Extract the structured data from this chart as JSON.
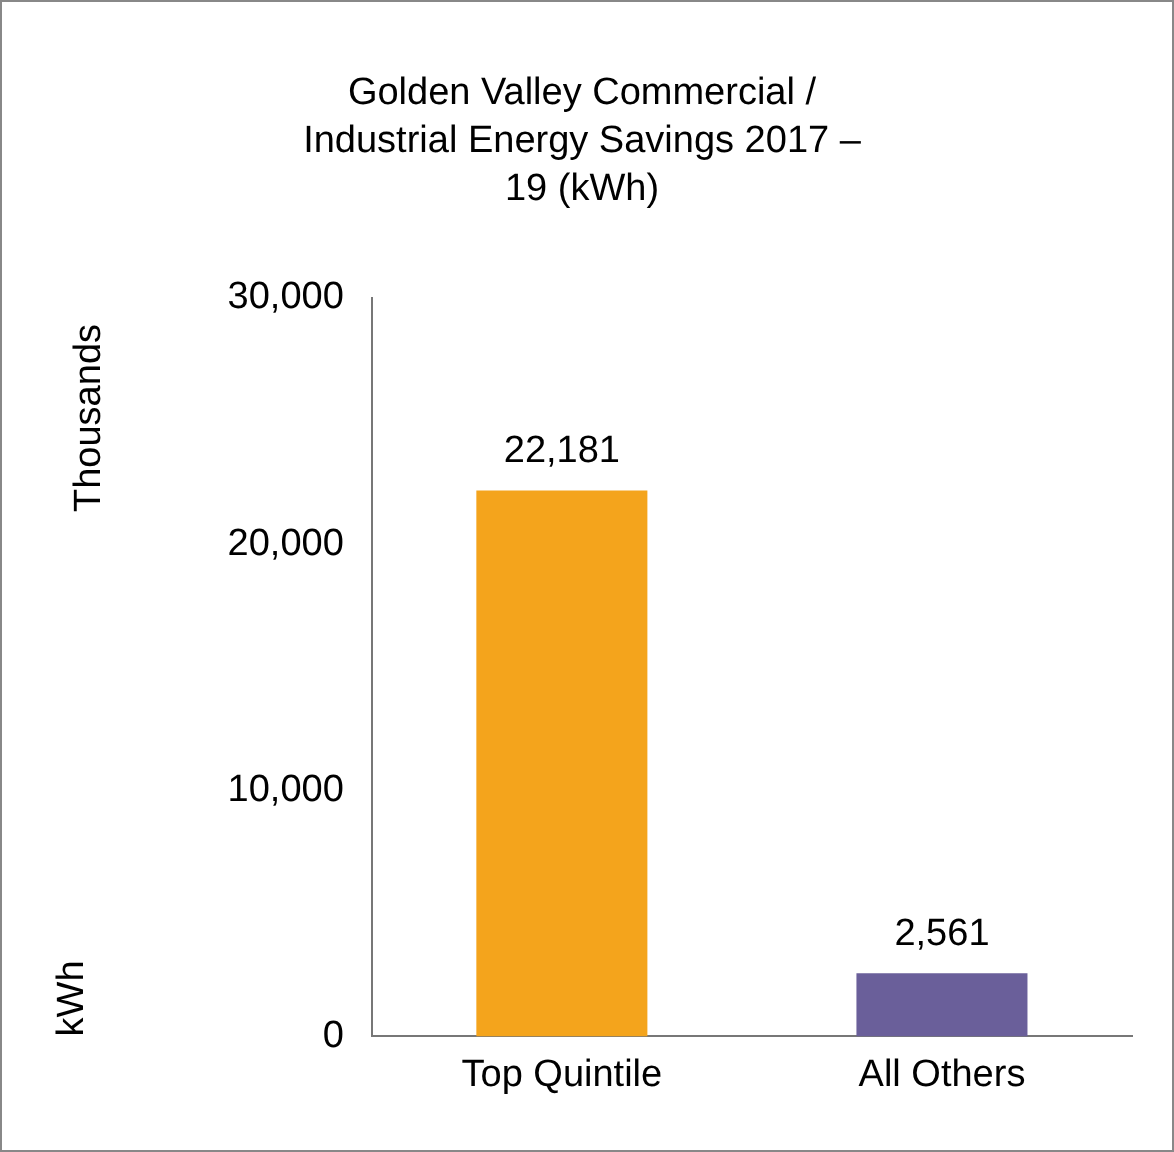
{
  "chart_data": {
    "type": "bar",
    "title": "Golden Valley Commercial / Industrial Energy Savings 2017 – 19 (kWh)",
    "ylabel": "kWh",
    "annotations": [
      "Thousands"
    ],
    "categories": [
      "Top Quintile",
      "All Others"
    ],
    "values": [
      22181,
      2561
    ],
    "value_labels": [
      "22,181",
      "2,561"
    ],
    "colors": [
      "#f4a41c",
      "#6a5f9a"
    ],
    "ylim": [
      0,
      30000
    ],
    "yticks": [
      0,
      {
        "value": 10000,
        "label": "10,000"
      },
      {
        "value": 20000,
        "label": "20,000"
      },
      {
        "value": 30000,
        "label": "30,000"
      }
    ],
    "grid": false,
    "legend": false
  }
}
